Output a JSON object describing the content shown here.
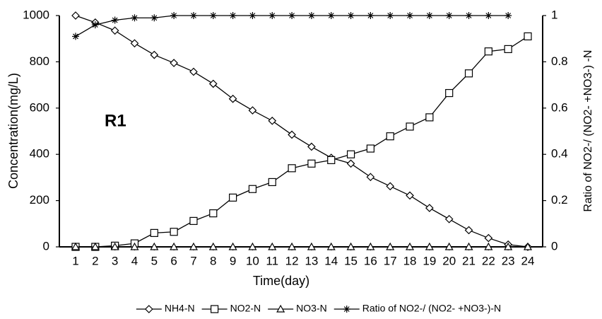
{
  "chart_data": {
    "type": "line",
    "xlabel": "Time(day)",
    "ylabel": "Concentration(mg/L)",
    "y2label": "Ratio of NO2-/ (NO2- +NO3-) -N",
    "annotation": "R1",
    "categories": [
      "1",
      "2",
      "3",
      "4",
      "5",
      "6",
      "7",
      "8",
      "9",
      "10",
      "11",
      "12",
      "13",
      "14",
      "15",
      "16",
      "17",
      "18",
      "19",
      "20",
      "21",
      "22",
      "23",
      "24"
    ],
    "ylim": [
      0,
      1000
    ],
    "yticks": [
      0,
      200,
      400,
      600,
      800,
      1000
    ],
    "y2lim": [
      0,
      1
    ],
    "y2ticks": [
      0,
      0.2,
      0.4,
      0.6,
      0.8,
      1
    ],
    "legend": "bottom",
    "series": [
      {
        "name": "NH4-N",
        "color": "#000000",
        "marker": "diamond",
        "values": [
          1000,
          970,
          935,
          880,
          830,
          795,
          757,
          705,
          640,
          590,
          545,
          485,
          433,
          385,
          360,
          302,
          262,
          222,
          168,
          120,
          72,
          38,
          10,
          0
        ]
      },
      {
        "name": "NO2-N",
        "color": "#000000",
        "marker": "square",
        "values": [
          0,
          0,
          5,
          15,
          60,
          65,
          112,
          145,
          213,
          250,
          280,
          340,
          360,
          375,
          400,
          425,
          478,
          520,
          560,
          665,
          750,
          845,
          855,
          910
        ]
      },
      {
        "name": "NO3-N",
        "color": "#000000",
        "marker": "triangle",
        "values": [
          0,
          0,
          0,
          0,
          0,
          0,
          0,
          0,
          0,
          0,
          0,
          0,
          0,
          0,
          0,
          0,
          0,
          0,
          0,
          0,
          0,
          0,
          0,
          0
        ]
      },
      {
        "name": "Ratio of NO2-/ (NO2- +NO3-)-N",
        "color": "#000000",
        "marker": "star",
        "axis": "y2",
        "values": [
          0.91,
          0.96,
          0.98,
          0.99,
          0.99,
          1,
          1,
          1,
          1,
          1,
          1,
          1,
          1,
          1,
          1,
          1,
          1,
          1,
          1,
          1,
          1,
          1,
          1,
          null
        ]
      }
    ]
  }
}
